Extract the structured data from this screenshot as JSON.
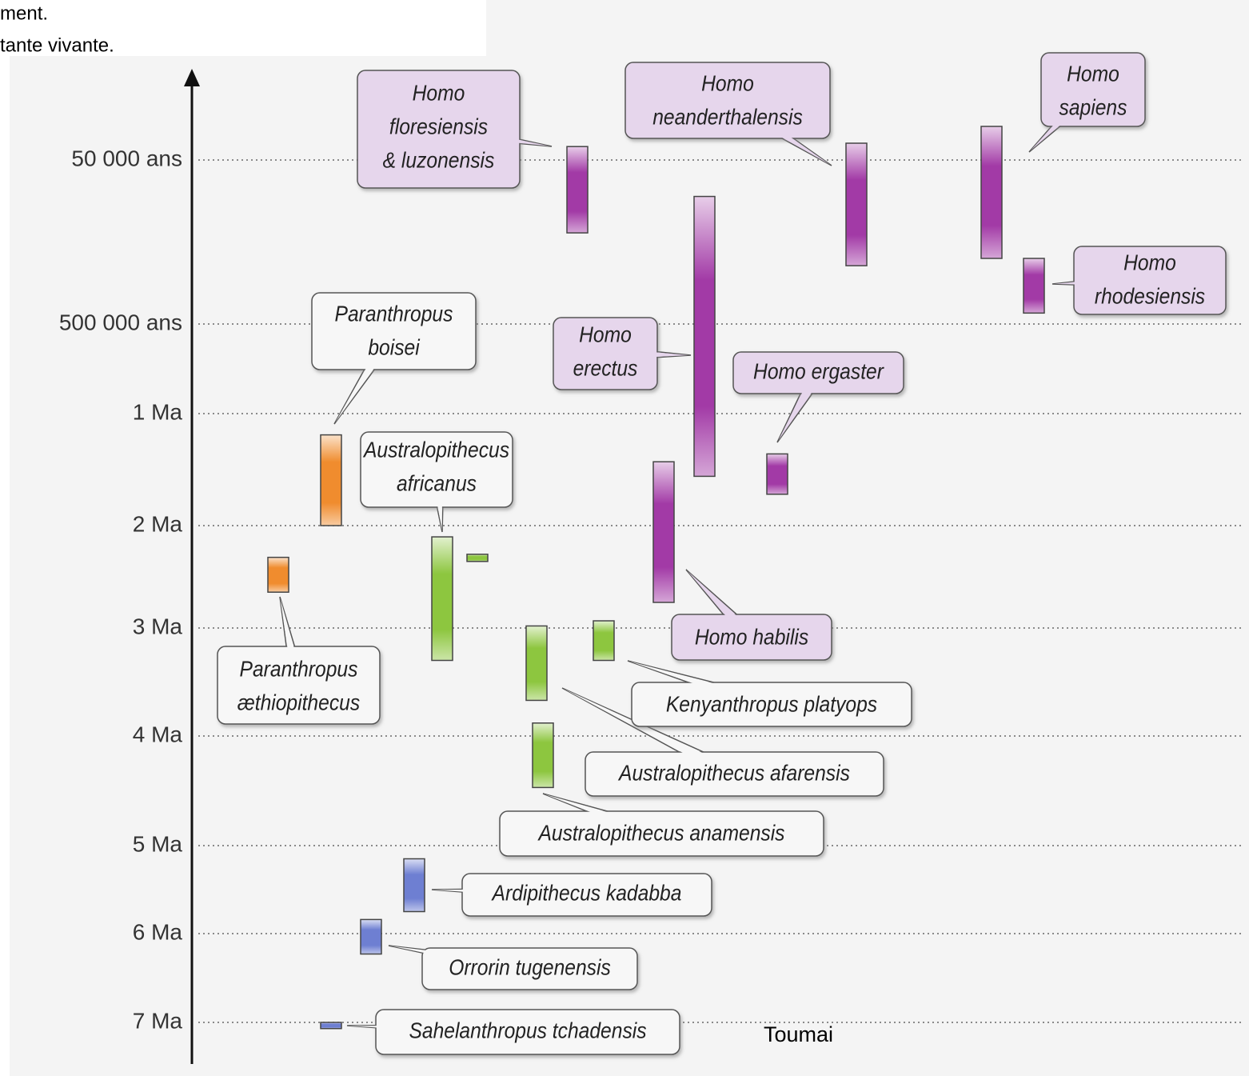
{
  "chart_data": {
    "type": "timeline",
    "ylim": [
      0,
      7500000
    ],
    "yticks": [
      {
        "value": 50000,
        "label": "50 000 ans"
      },
      {
        "value": 500000,
        "label": "500 000 ans"
      },
      {
        "value": 1000000,
        "label": "1 Ma"
      },
      {
        "value": 2000000,
        "label": "2 Ma"
      },
      {
        "value": 3000000,
        "label": "3 Ma"
      },
      {
        "value": 4000000,
        "label": "4 Ma"
      },
      {
        "value": 5000000,
        "label": "5 Ma"
      },
      {
        "value": 6000000,
        "label": "6 Ma"
      },
      {
        "value": 7000000,
        "label": "7 Ma"
      }
    ],
    "grid": true,
    "series": [
      {
        "name": [
          "Homo",
          "floresiensis",
          "& luzonensis"
        ],
        "color": "#a23aa6",
        "values": [
          42000,
          250000
        ]
      },
      {
        "name": [
          "Homo",
          "neanderthalensis"
        ],
        "color": "#a23aa6",
        "values": [
          40000,
          340000
        ]
      },
      {
        "name": [
          "Homo",
          "sapiens"
        ],
        "color": "#a23aa6",
        "values": [
          30000,
          320000
        ]
      },
      {
        "name": [
          "Homo",
          "rhodesiensis"
        ],
        "color": "#a23aa6",
        "values": [
          320000,
          470000
        ]
      },
      {
        "name": [
          "Homo",
          "erectus"
        ],
        "color": "#a23aa6",
        "values": [
          150000,
          1560000
        ]
      },
      {
        "name": [
          "Homo ergaster"
        ],
        "color": "#a23aa6",
        "values": [
          1360000,
          1720000
        ]
      },
      {
        "name": [
          "Homo habilis"
        ],
        "color": "#a23aa6",
        "values": [
          1430000,
          2750000
        ]
      },
      {
        "name": [
          "Paranthropus",
          "boisei"
        ],
        "color": "#f08c2e",
        "values": [
          1190000,
          2000000
        ]
      },
      {
        "name": [
          "Paranthropus",
          "æthiopithecus"
        ],
        "color": "#f08c2e",
        "values": [
          2310000,
          2650000
        ]
      },
      {
        "name": [
          "Australopithecus",
          "africanus"
        ],
        "color": "#8dc63f",
        "values": [
          2110000,
          3300000
        ]
      },
      {
        "name": null,
        "color": "#8dc63f",
        "values": [
          2280000,
          2350000
        ]
      },
      {
        "name": [
          "Australopithecus afarensis"
        ],
        "color": "#8dc63f",
        "values": [
          2980000,
          3670000
        ]
      },
      {
        "name": [
          "Kenyanthropus platyops"
        ],
        "color": "#8dc63f",
        "values": [
          2930000,
          3300000
        ]
      },
      {
        "name": [
          "Australopithecus anamensis"
        ],
        "color": "#8dc63f",
        "values": [
          3880000,
          4470000
        ]
      },
      {
        "name": [
          "Ardipithecus kadabba"
        ],
        "color": "#6e7fd2",
        "values": [
          5150000,
          5750000
        ]
      },
      {
        "name": [
          "Orrorin tugenensis"
        ],
        "color": "#6e7fd2",
        "values": [
          5840000,
          6230000
        ]
      },
      {
        "name": [
          "Sahelanthropus tchadensis"
        ],
        "color": "#6e7fd2",
        "values": [
          7000000,
          7070000
        ]
      }
    ]
  },
  "annotations": [
    "ment.",
    "tante vivante.",
    "Toumai"
  ]
}
